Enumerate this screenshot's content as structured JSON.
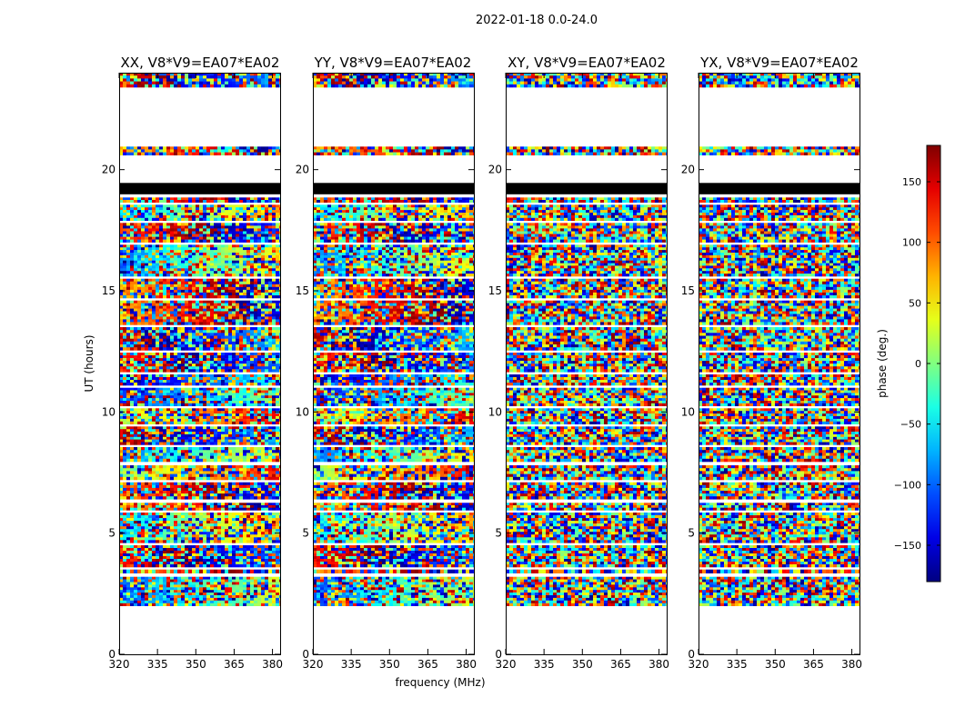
{
  "chart_data": {
    "type": "heatmap",
    "suptitle": "2022-01-18 0.0-24.0",
    "xlabel": "frequency (MHz)",
    "ylabel": "UT (hours)",
    "xlim": [
      320,
      383
    ],
    "ylim": [
      0,
      24
    ],
    "xticks": [
      "320",
      "335",
      "350",
      "365",
      "380"
    ],
    "xtick_values": [
      320,
      335,
      350,
      365,
      380
    ],
    "yticks": [
      "0",
      "5",
      "10",
      "15",
      "20"
    ],
    "ytick_values": [
      0,
      5,
      10,
      15,
      20
    ],
    "panels": [
      {
        "title": "XX, V8*V9=EA07*EA02",
        "pol": "XX"
      },
      {
        "title": "YY, V8*V9=EA07*EA02",
        "pol": "YY"
      },
      {
        "title": "XY, V8*V9=EA07*EA02",
        "pol": "XY"
      },
      {
        "title": "YX, V8*V9=EA07*EA02",
        "pol": "YX"
      }
    ],
    "colorbar": {
      "label": "phase (deg.)",
      "range": [
        -180,
        180
      ],
      "ticks": [
        "150",
        "100",
        "50",
        "0",
        "−50",
        "−100",
        "−150"
      ],
      "tick_values": [
        150,
        100,
        50,
        0,
        -50,
        -100,
        -150
      ],
      "colormap": "jet"
    },
    "data_ranges_hours": [
      [
        2.0,
        3.2
      ],
      [
        3.35,
        3.5
      ],
      [
        3.6,
        4.5
      ],
      [
        4.6,
        5.85
      ],
      [
        5.95,
        6.25
      ],
      [
        6.4,
        7.1
      ],
      [
        7.2,
        7.8
      ],
      [
        7.95,
        8.55
      ],
      [
        8.65,
        9.4
      ],
      [
        9.5,
        10.15
      ],
      [
        10.25,
        11.0
      ],
      [
        11.1,
        11.55
      ],
      [
        11.65,
        12.45
      ],
      [
        12.55,
        13.5
      ],
      [
        13.6,
        14.6
      ],
      [
        14.7,
        15.5
      ],
      [
        15.6,
        16.9
      ],
      [
        17.0,
        17.8
      ],
      [
        17.9,
        18.55
      ],
      [
        18.65,
        18.85
      ],
      [
        20.6,
        20.95
      ],
      [
        23.4,
        24.0
      ]
    ],
    "flagged_black_range_hours": [
      18.98,
      19.45
    ]
  }
}
